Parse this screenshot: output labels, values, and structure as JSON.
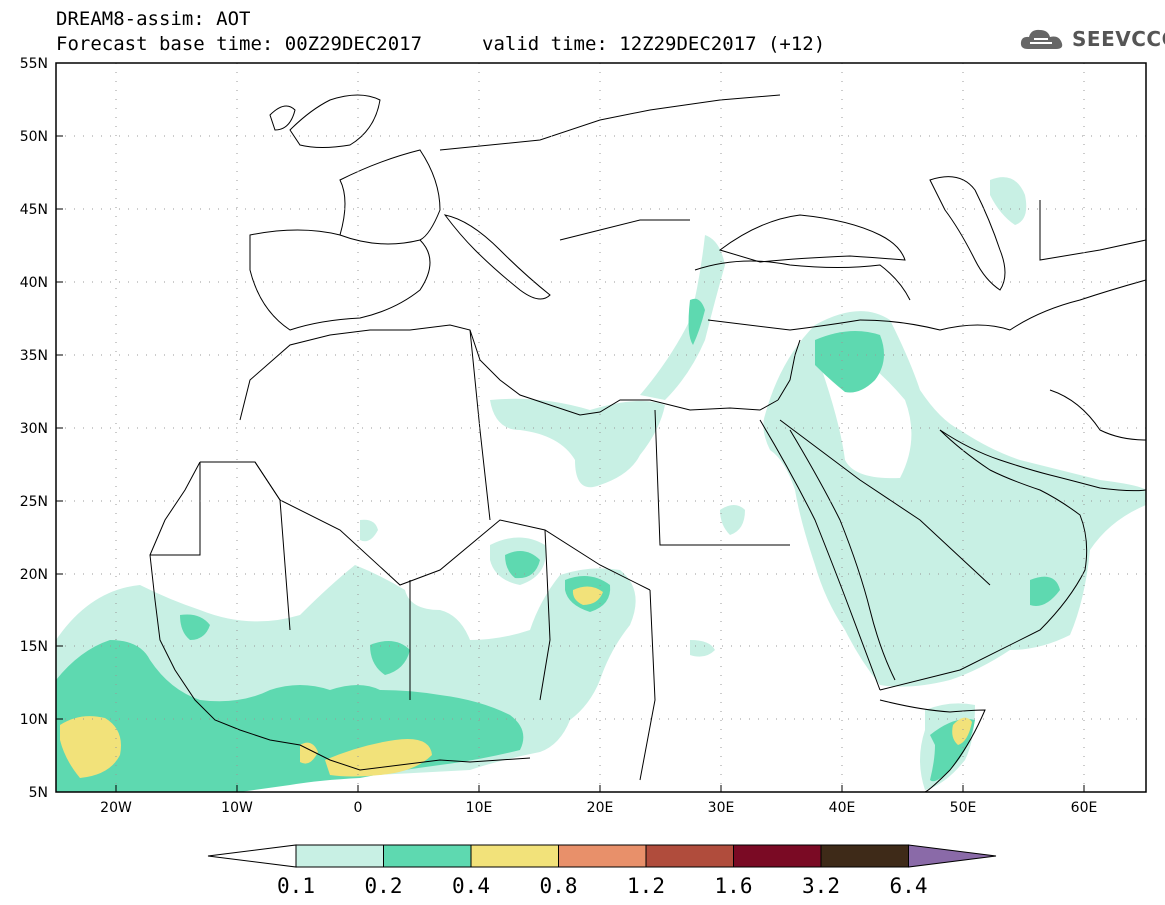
{
  "header": {
    "title": "DREAM8-assim: AOT",
    "base_time": "Forecast base time: 00Z29DEC2017",
    "valid_time": "valid time: 12Z29DEC2017 (+12)",
    "logo_text": "SEEVCCC"
  },
  "axes": {
    "lat_labels": [
      "55N",
      "50N",
      "45N",
      "40N",
      "35N",
      "30N",
      "25N",
      "20N",
      "15N",
      "10N",
      "5N"
    ],
    "lon_labels": [
      "20W",
      "10W",
      "0",
      "10E",
      "20E",
      "30E",
      "40E",
      "50E",
      "60E"
    ]
  },
  "colorbar": {
    "colors": [
      "#ffffff",
      "#c8f0e4",
      "#5ed9b0",
      "#f2e27a",
      "#e8906a",
      "#b04c3c",
      "#7a0a24",
      "#3e2a18",
      "#8a6aa8"
    ],
    "labels": [
      "0.1",
      "0.2",
      "0.4",
      "0.8",
      "1.2",
      "1.6",
      "3.2",
      "6.4"
    ]
  }
}
